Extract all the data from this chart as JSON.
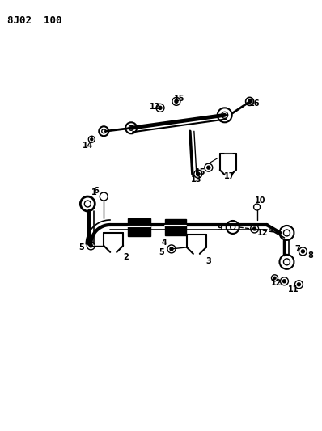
{
  "title": "8J02  100",
  "background_color": "#ffffff",
  "line_color": "#000000",
  "figsize": [
    3.98,
    5.33
  ],
  "dpi": 100
}
